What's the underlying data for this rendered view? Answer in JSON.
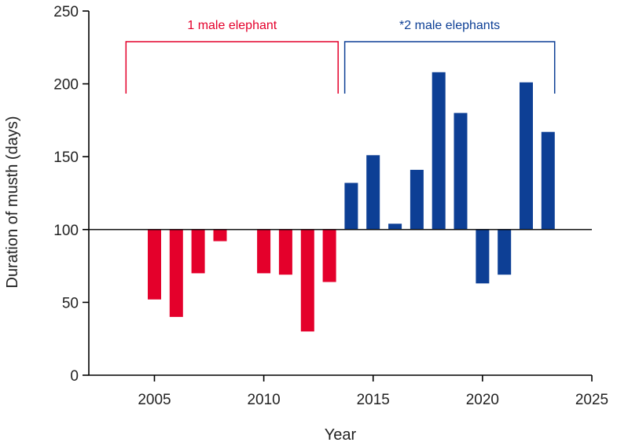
{
  "chart_data": {
    "type": "bar",
    "title": "",
    "xlabel": "Year",
    "ylabel": "Duration of musth (days)",
    "xlim": [
      2002,
      2025
    ],
    "ylim": [
      0,
      250
    ],
    "baseline": 100,
    "x_ticks": [
      2005,
      2010,
      2015,
      2020,
      2025
    ],
    "y_ticks": [
      0,
      50,
      100,
      150,
      200,
      250
    ],
    "series": [
      {
        "name": "1 male elephant",
        "color": "#e4002b",
        "x": [
          2005,
          2006,
          2007,
          2008,
          2010,
          2011,
          2012,
          2013
        ],
        "values": [
          52,
          40,
          70,
          92,
          70,
          69,
          30,
          64
        ]
      },
      {
        "name": "*2 male elephants",
        "color": "#0d3f95",
        "x": [
          2014,
          2015,
          2016,
          2017,
          2018,
          2019,
          2020,
          2021,
          2022,
          2023
        ],
        "values": [
          132,
          151,
          104,
          141,
          208,
          180,
          63,
          69,
          201,
          167
        ]
      }
    ],
    "brackets": [
      {
        "label": "1 male elephant",
        "from": 2003.7,
        "to": 2013.4,
        "color": "#e4002b"
      },
      {
        "label": "*2 male elephants",
        "from": 2013.7,
        "to": 2023.3,
        "color": "#0d3f95"
      }
    ]
  }
}
